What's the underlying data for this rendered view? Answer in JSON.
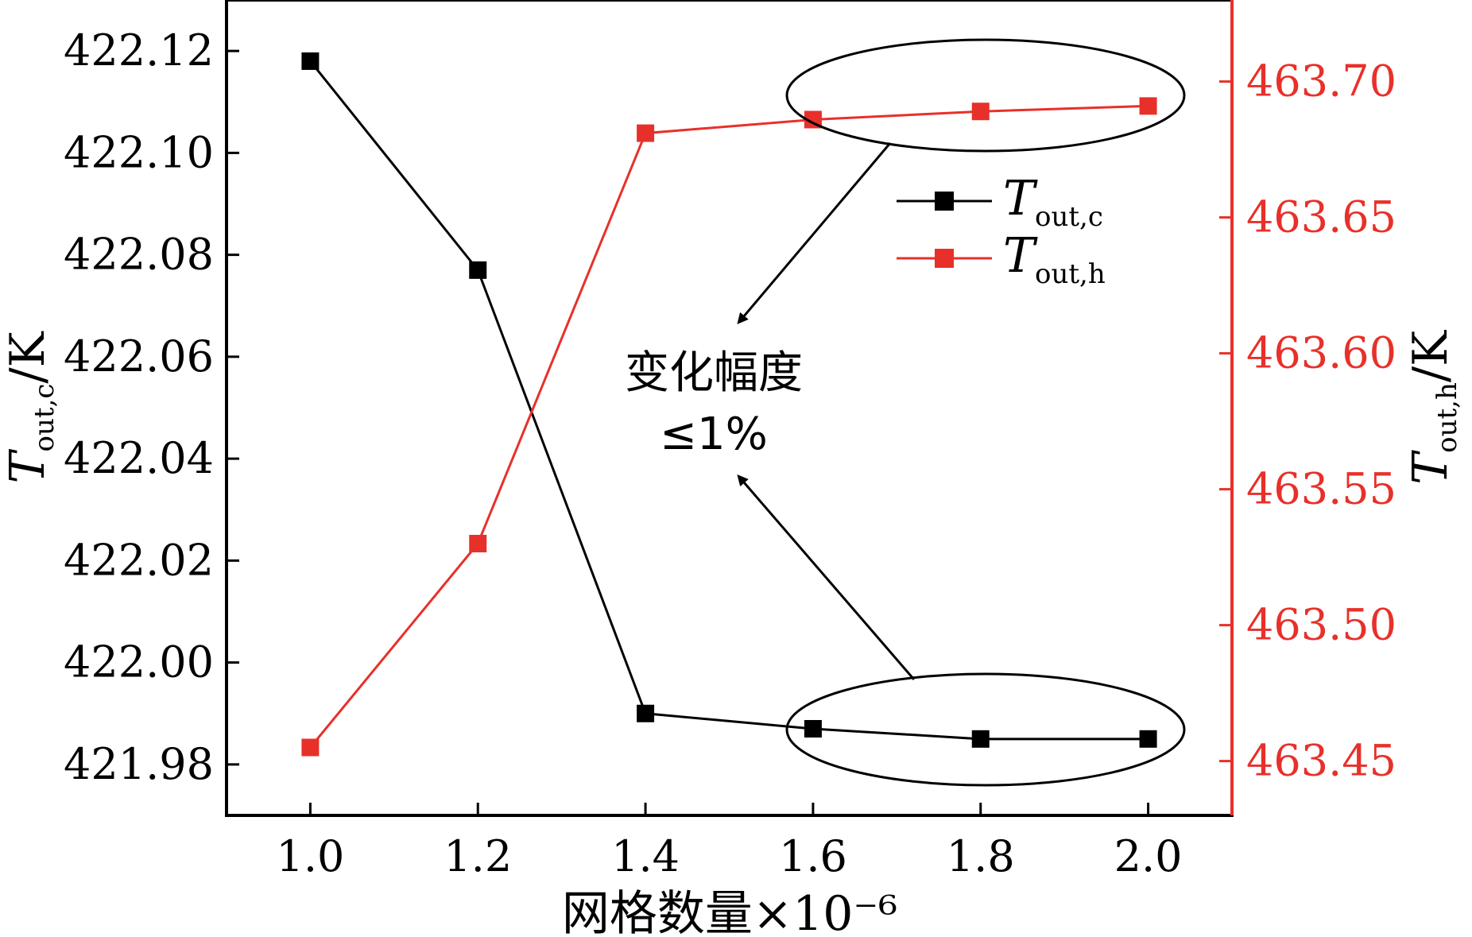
{
  "chart_data": {
    "type": "line",
    "x": [
      1.0,
      1.2,
      1.4,
      1.6,
      1.8,
      2.0
    ],
    "xlabel": "网格数量×10⁻⁶",
    "xlim": [
      0.9,
      2.1
    ],
    "xticks": [
      "1.0",
      "1.2",
      "1.4",
      "1.6",
      "1.8",
      "2.0"
    ],
    "y_left": {
      "label_main": "T",
      "label_sub": "out,c",
      "label_unit": "/K",
      "lim": [
        421.97,
        422.13
      ],
      "ticks": [
        "421.98",
        "422.00",
        "422.02",
        "422.04",
        "422.06",
        "422.08",
        "422.10",
        "422.12"
      ],
      "color": "#000000"
    },
    "y_right": {
      "label_main": "T",
      "label_sub": "out,h",
      "label_unit": "/K",
      "lim": [
        463.43,
        463.73
      ],
      "ticks": [
        "463.45",
        "463.50",
        "463.55",
        "463.60",
        "463.65",
        "463.70"
      ],
      "color": "#e8302a"
    },
    "series": [
      {
        "name": "Tout,c",
        "legend_main": "T",
        "legend_sub": "out,c",
        "axis": "left",
        "color": "#000000",
        "values": [
          422.118,
          422.077,
          421.99,
          421.987,
          421.985,
          421.985
        ]
      },
      {
        "name": "Tout,h",
        "legend_main": "T",
        "legend_sub": "out,h",
        "axis": "right",
        "color": "#e8302a",
        "values": [
          463.455,
          463.53,
          463.681,
          463.686,
          463.689,
          463.691
        ]
      }
    ],
    "legend_position": "top-right",
    "annotation": {
      "line1": "变化幅度",
      "line2": "≤1%"
    },
    "grid": false
  }
}
